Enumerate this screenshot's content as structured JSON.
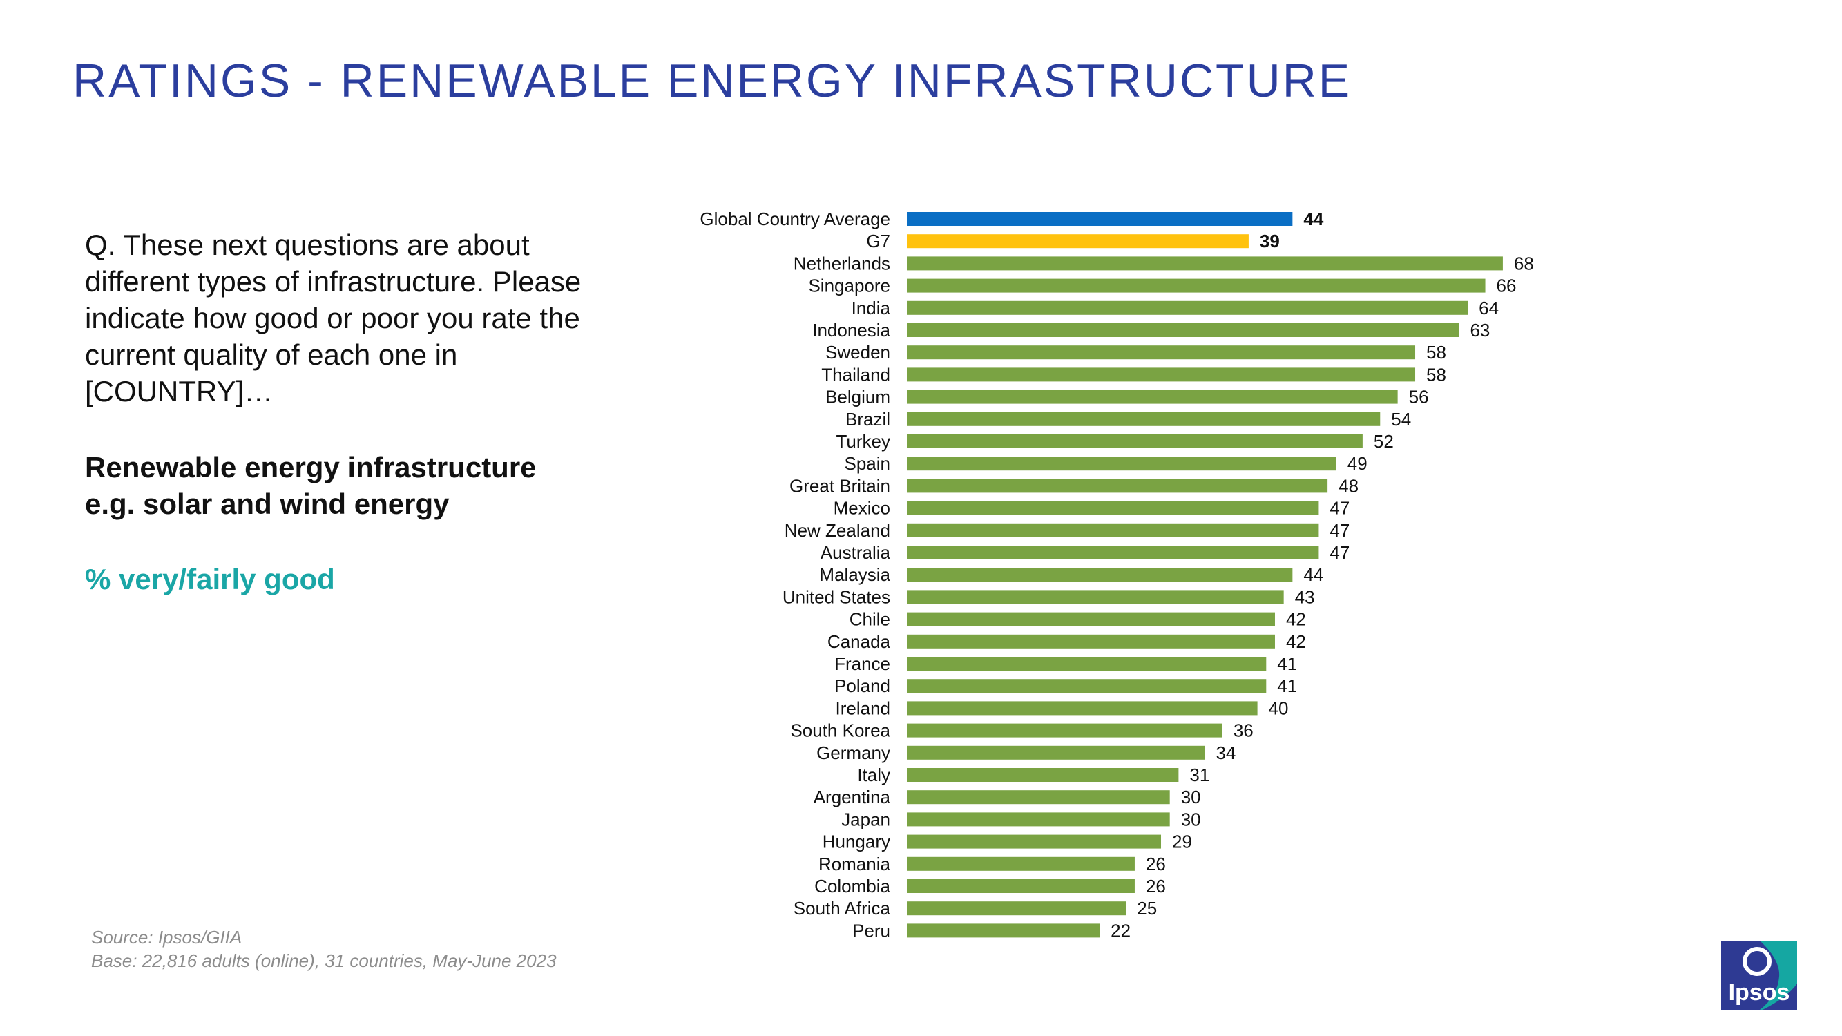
{
  "page": {
    "title": "RATINGS - RENEWABLE ENERGY INFRASTRUCTURE",
    "question": "Q. These next questions are about different types of infrastructure. Please indicate how good or poor you rate the current quality of each one in [COUNTRY]…",
    "topic_line1": "Renewable energy infrastructure",
    "topic_line2": "e.g. solar and wind energy",
    "measure": "% very/fairly good",
    "source": "Source: Ipsos/GIIA",
    "base": "Base: 22,816 adults (online), 31 countries, May-June 2023",
    "logo_text": "Ipsos"
  },
  "colors": {
    "title": "#2B3E9E",
    "global_bar": "#0A6EC4",
    "g7_bar": "#FFC20E",
    "country_bar": "#7AA343",
    "measure_text": "#1AA6A6",
    "logo_blue": "#2E3A93",
    "logo_teal": "#15A7A2"
  },
  "chart_data": {
    "type": "bar",
    "orientation": "horizontal",
    "categories": [
      "Global Country Average",
      "G7",
      "Netherlands",
      "Singapore",
      "India",
      "Indonesia",
      "Sweden",
      "Thailand",
      "Belgium",
      "Brazil",
      "Turkey",
      "Spain",
      "Great Britain",
      "Mexico",
      "New Zealand",
      "Australia",
      "Malaysia",
      "United States",
      "Chile",
      "Canada",
      "France",
      "Poland",
      "Ireland",
      "South Korea",
      "Germany",
      "Italy",
      "Argentina",
      "Japan",
      "Hungary",
      "Romania",
      "Colombia",
      "South Africa",
      "Peru"
    ],
    "values": [
      44,
      39,
      68,
      66,
      64,
      63,
      58,
      58,
      56,
      54,
      52,
      49,
      48,
      47,
      47,
      47,
      44,
      43,
      42,
      42,
      41,
      41,
      40,
      36,
      34,
      31,
      30,
      30,
      29,
      26,
      26,
      25,
      22
    ],
    "highlight": {
      "Global Country Average": "global_bar",
      "G7": "g7_bar"
    },
    "bold_labels": [
      "Global Country Average",
      "G7"
    ],
    "xlim": [
      0,
      100
    ],
    "grid": false,
    "legend": "none"
  }
}
